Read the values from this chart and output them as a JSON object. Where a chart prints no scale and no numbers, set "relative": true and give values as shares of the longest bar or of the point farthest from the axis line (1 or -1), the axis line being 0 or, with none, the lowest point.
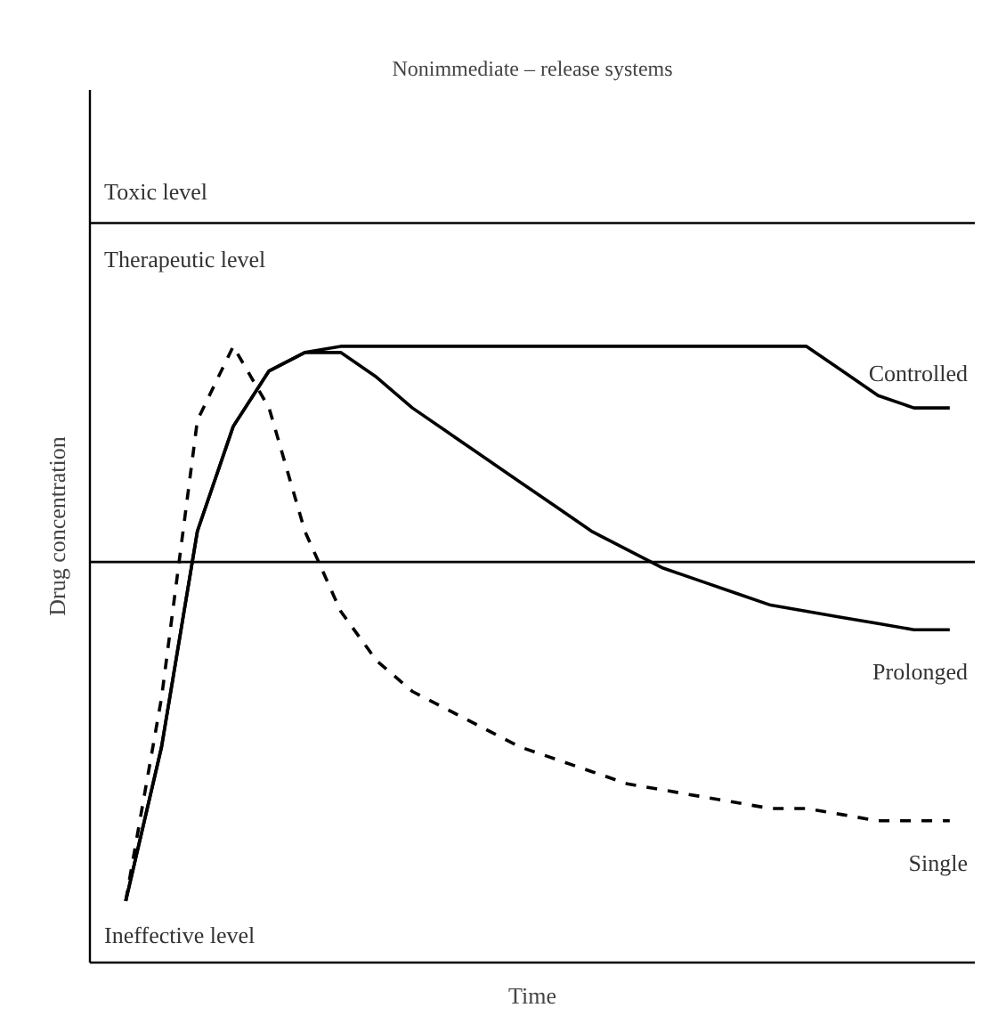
{
  "chart_data": {
    "type": "line",
    "title": "Nonimmediate – release systems",
    "xlabel": "Time",
    "ylabel": "Drug concentration",
    "relative": true,
    "grid": false,
    "legend": false,
    "marker": "none",
    "categories": [
      null,
      null,
      null,
      null,
      null,
      null,
      null,
      null,
      null,
      null,
      null,
      null,
      null,
      null,
      null,
      null,
      null,
      null,
      null,
      null,
      null,
      null,
      null,
      null
    ],
    "series": [
      {
        "name": "Controlled",
        "color": "#000000",
        "line_style": "solid",
        "values": [
          0.1,
          0.35,
          0.7,
          0.87,
          0.96,
          0.99,
          1.0,
          1.0,
          1.0,
          1.0,
          1.0,
          1.0,
          1.0,
          1.0,
          1.0,
          1.0,
          1.0,
          1.0,
          1.0,
          1.0,
          0.96,
          0.92,
          0.9,
          0.9
        ]
      },
      {
        "name": "Prolonged",
        "color": "#000000",
        "line_style": "solid",
        "values": [
          0.1,
          0.35,
          0.7,
          0.87,
          0.96,
          0.99,
          0.99,
          0.95,
          0.9,
          0.86,
          0.82,
          0.78,
          0.74,
          0.7,
          0.67,
          0.64,
          0.62,
          0.6,
          0.58,
          0.57,
          0.56,
          0.55,
          0.54,
          0.54
        ]
      },
      {
        "name": "Single",
        "color": "#000000",
        "line_style": "dashed",
        "values": [
          0.1,
          0.43,
          0.88,
          1.0,
          0.9,
          0.7,
          0.57,
          0.49,
          0.44,
          0.41,
          0.38,
          0.35,
          0.33,
          0.31,
          0.29,
          0.28,
          0.27,
          0.26,
          0.25,
          0.25,
          0.24,
          0.23,
          0.23,
          0.23
        ]
      }
    ],
    "ref_lines": [
      {
        "axis": "y",
        "value": 1.2,
        "label": "Toxic level",
        "color": "#000000"
      },
      {
        "axis": "y",
        "value": 0.65,
        "label": null,
        "color": "#000000"
      }
    ],
    "annotations": [
      "Therapeutic level",
      "Ineffective level"
    ]
  }
}
